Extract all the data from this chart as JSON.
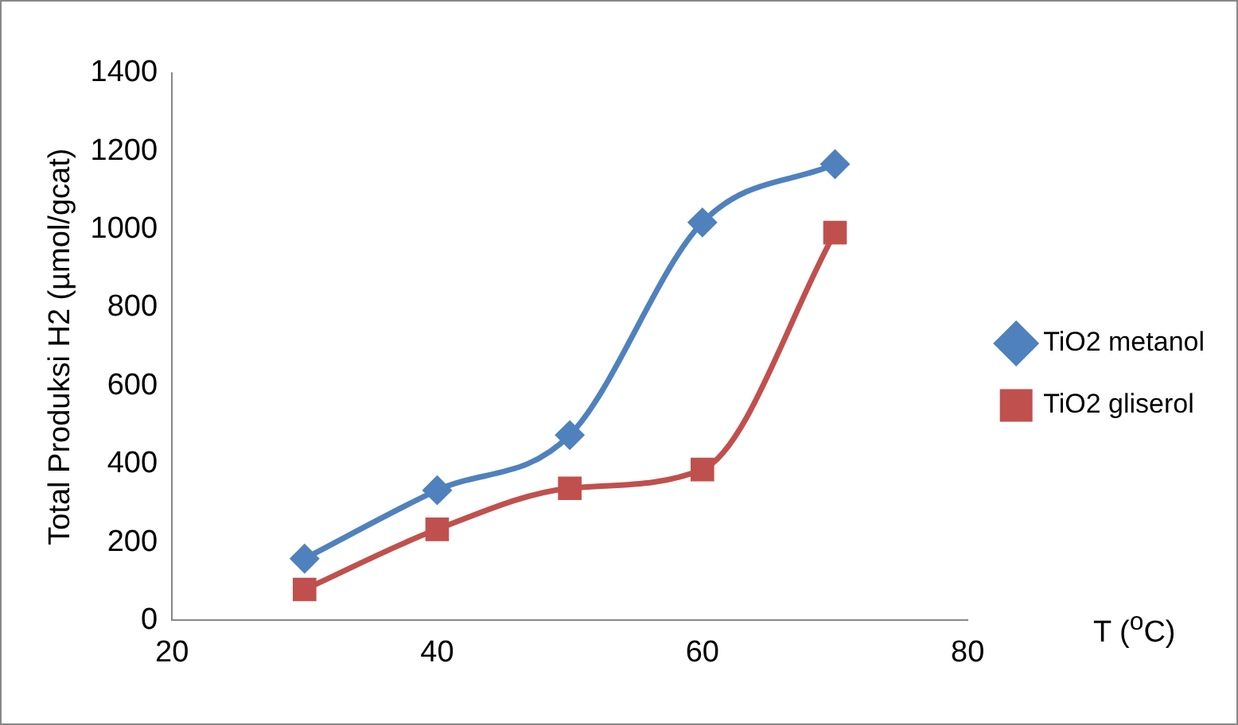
{
  "chart_data": {
    "type": "line",
    "xlabel": "T  ($^{o}$C)",
    "ylabel": "Total Produksi H2 (µmol/gcat)",
    "x": [
      30,
      40,
      50,
      60,
      70
    ],
    "series": [
      {
        "name": "TiO2 metanol",
        "color": "#4f81bd",
        "marker": "diamond",
        "values": [
          158,
          333,
          474,
          1018,
          1167
        ]
      },
      {
        "name": "TiO2 gliserol",
        "color": "#c0504d",
        "marker": "square",
        "values": [
          79,
          233,
          338,
          386,
          992
        ]
      }
    ],
    "xlim": [
      20,
      80
    ],
    "xticks": [
      20,
      40,
      60,
      80
    ],
    "ylim": [
      0,
      1400
    ],
    "yticks": [
      0,
      200,
      400,
      600,
      800,
      1000,
      1200,
      1400
    ],
    "grid": false,
    "legend": "right"
  }
}
